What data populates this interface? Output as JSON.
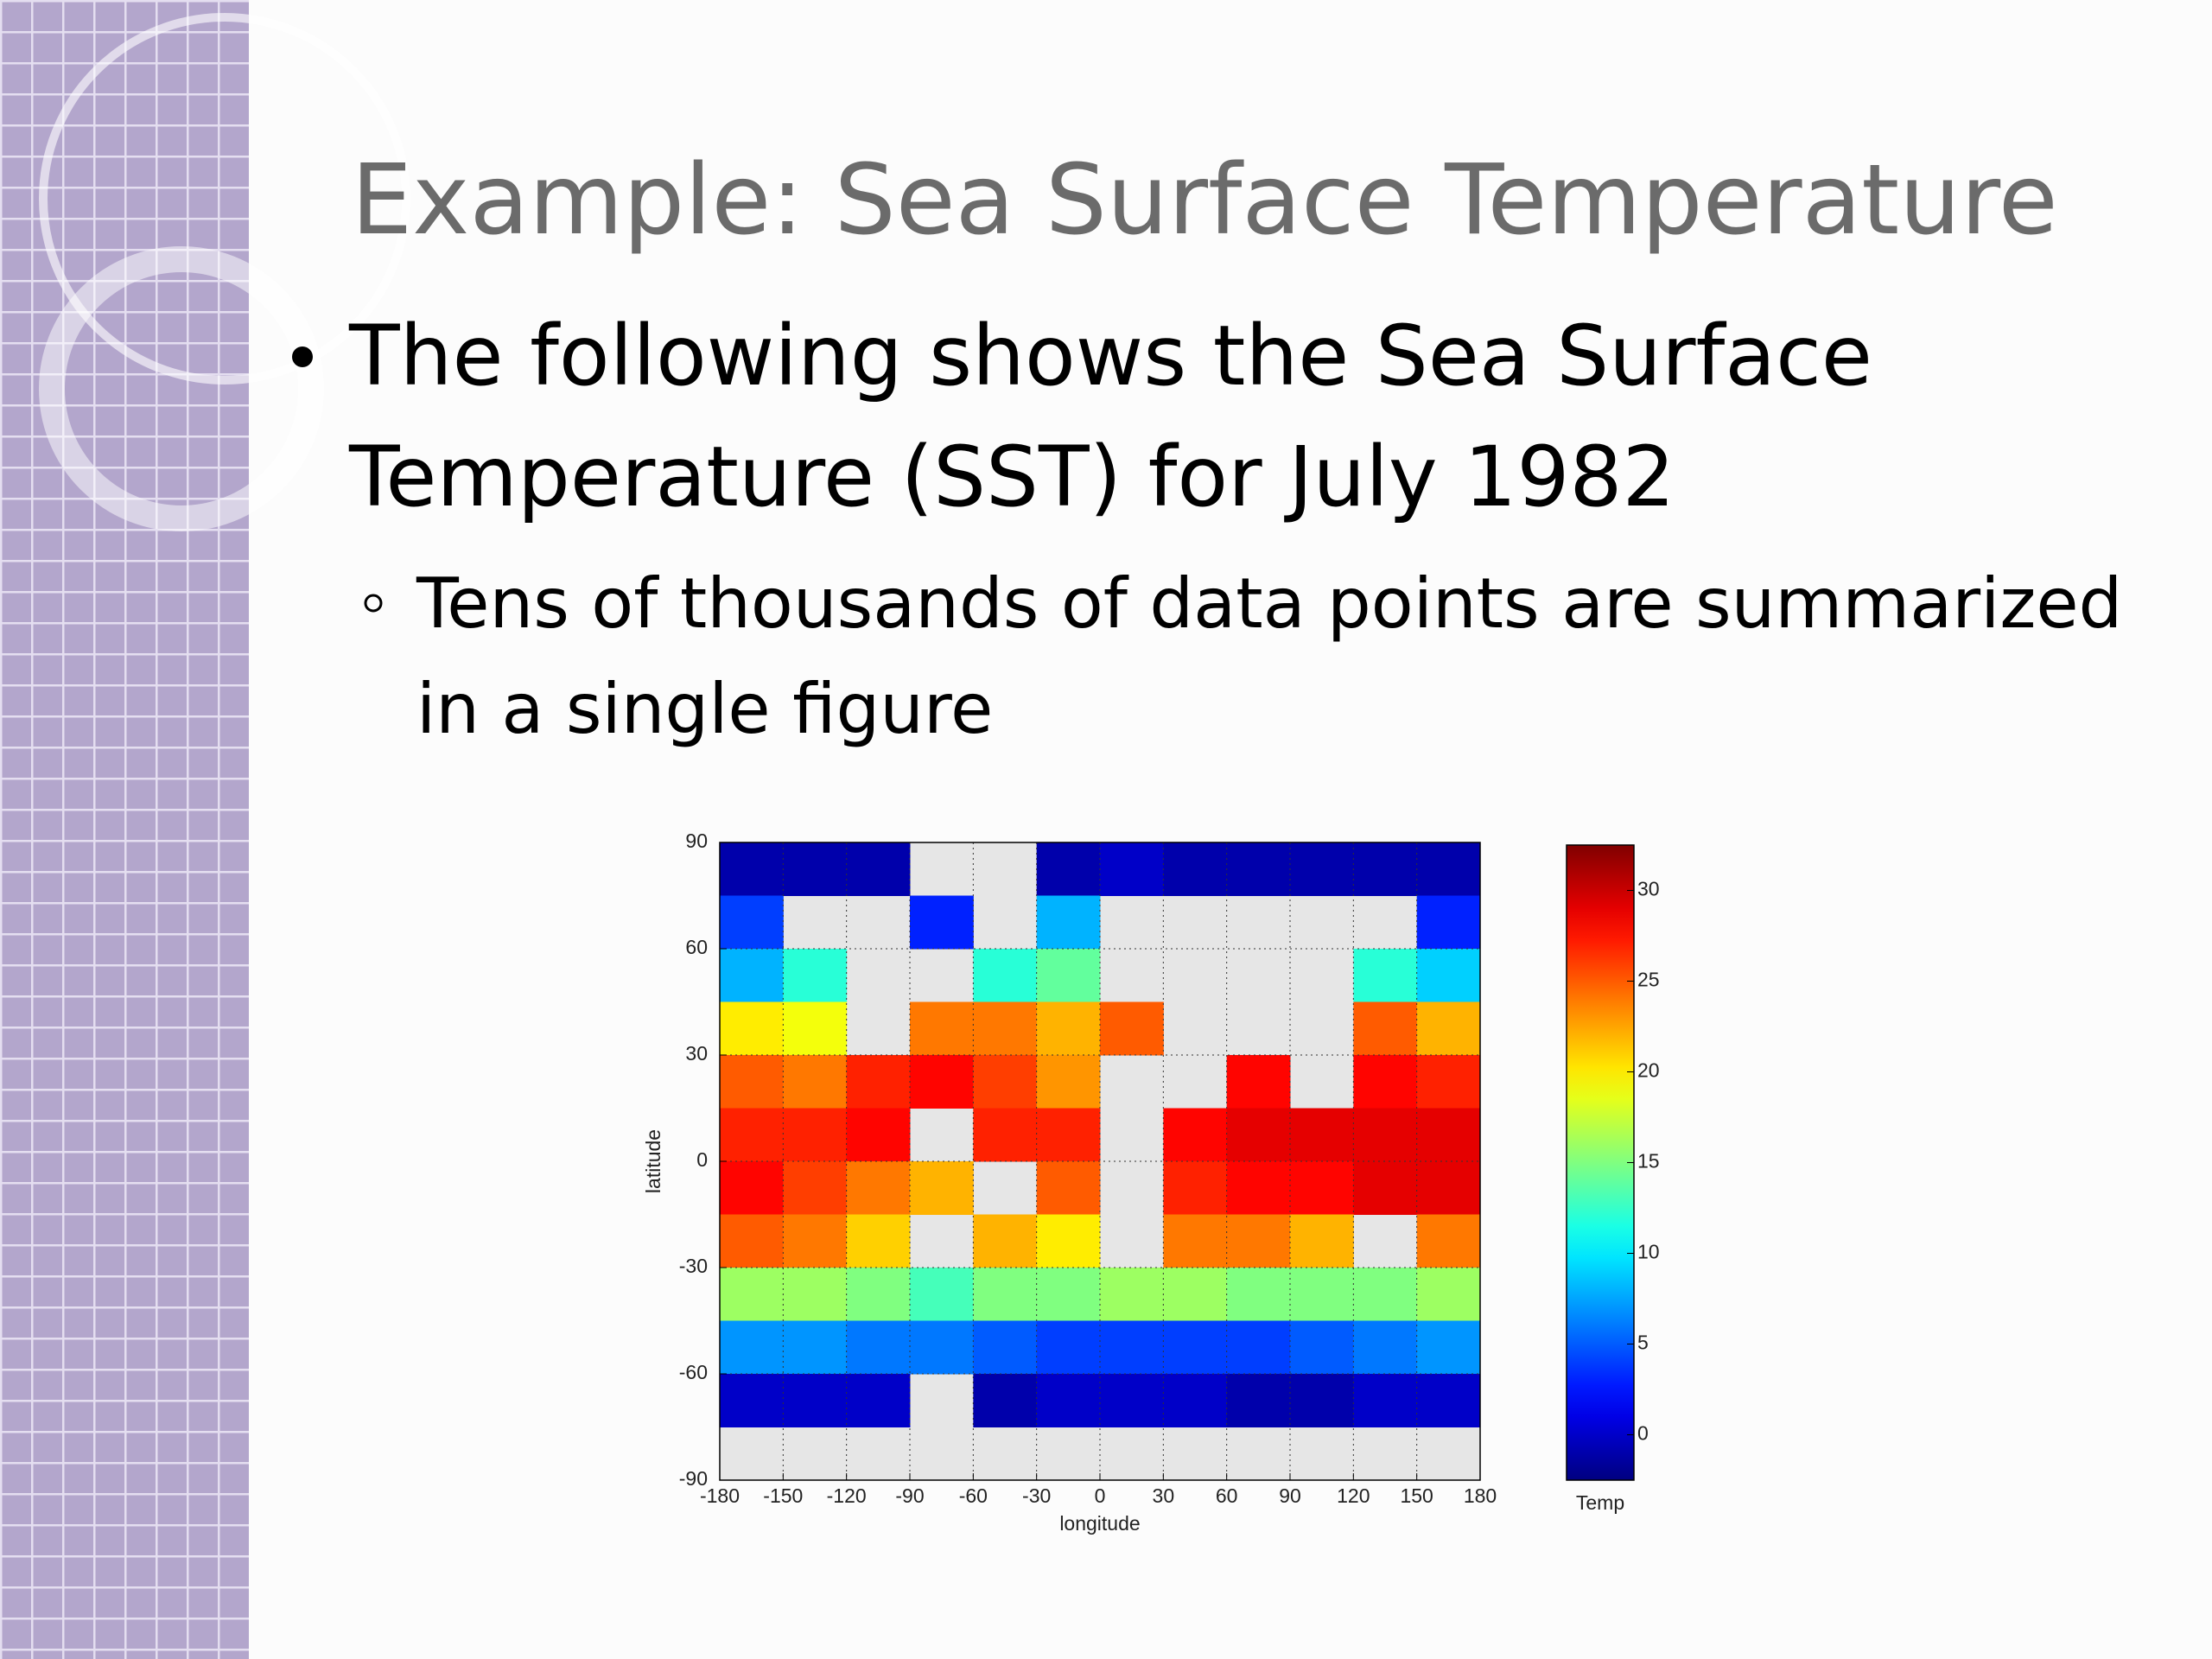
{
  "slide": {
    "title": "Example: Sea Surface Temperature",
    "bullet": [
      "The following shows the Sea Surface",
      "Temperature (SST) for July 1982"
    ],
    "sub_bullet": [
      "Tens of thousands of data points are summarized",
      "in a single figure"
    ]
  },
  "chart_data": {
    "type": "heatmap",
    "xlabel": "longitude",
    "ylabel": "latitude",
    "colorbar_label": "Temp",
    "x": [
      -165,
      -135,
      -105,
      -75,
      -45,
      -15,
      15,
      45,
      75,
      105,
      135,
      165
    ],
    "y": [
      82.5,
      67.5,
      52.5,
      37.5,
      22.5,
      7.5,
      -7.5,
      -22.5,
      -37.5,
      -52.5,
      -67.5,
      -82.5
    ],
    "values": [
      [
        -1,
        -1,
        -1,
        null,
        null,
        -1,
        0,
        -1,
        -1,
        -1,
        -1,
        -1
      ],
      [
        4,
        null,
        null,
        3,
        null,
        8,
        null,
        null,
        null,
        null,
        null,
        3
      ],
      [
        8,
        12,
        null,
        null,
        12,
        14,
        null,
        null,
        null,
        null,
        12,
        9
      ],
      [
        20,
        19,
        null,
        24,
        24,
        22,
        25,
        null,
        null,
        null,
        25,
        22
      ],
      [
        25,
        24,
        27,
        28,
        26,
        23,
        null,
        null,
        28,
        null,
        28,
        27
      ],
      [
        27,
        27,
        28,
        null,
        27,
        27,
        null,
        28,
        29,
        29,
        29,
        29
      ],
      [
        28,
        26,
        24,
        22,
        null,
        25,
        null,
        27,
        28,
        28,
        29,
        29
      ],
      [
        25,
        24,
        21,
        null,
        22,
        20,
        null,
        24,
        24,
        22,
        null,
        24
      ],
      [
        16,
        16,
        15,
        13,
        15,
        15,
        16,
        16,
        15,
        15,
        15,
        16
      ],
      [
        7,
        7,
        6,
        6,
        5,
        4,
        4,
        4,
        4,
        5,
        6,
        7
      ],
      [
        0,
        0,
        0,
        null,
        -1,
        0,
        0,
        0,
        -1,
        -1,
        0,
        0
      ],
      [
        null,
        null,
        null,
        null,
        null,
        null,
        null,
        null,
        null,
        null,
        null,
        null
      ]
    ],
    "xlim": [
      -180,
      180
    ],
    "xticks": [
      -180,
      -150,
      -120,
      -90,
      -60,
      -30,
      0,
      30,
      60,
      90,
      120,
      150,
      180
    ],
    "ylim": [
      -90,
      90
    ],
    "yticks": [
      -90,
      -60,
      -30,
      0,
      30,
      60,
      90
    ],
    "clim": [
      -2.5,
      32.5
    ],
    "cticks": [
      0,
      5,
      10,
      15,
      20,
      25,
      30
    ],
    "colormap": "jet",
    "grid": true
  }
}
